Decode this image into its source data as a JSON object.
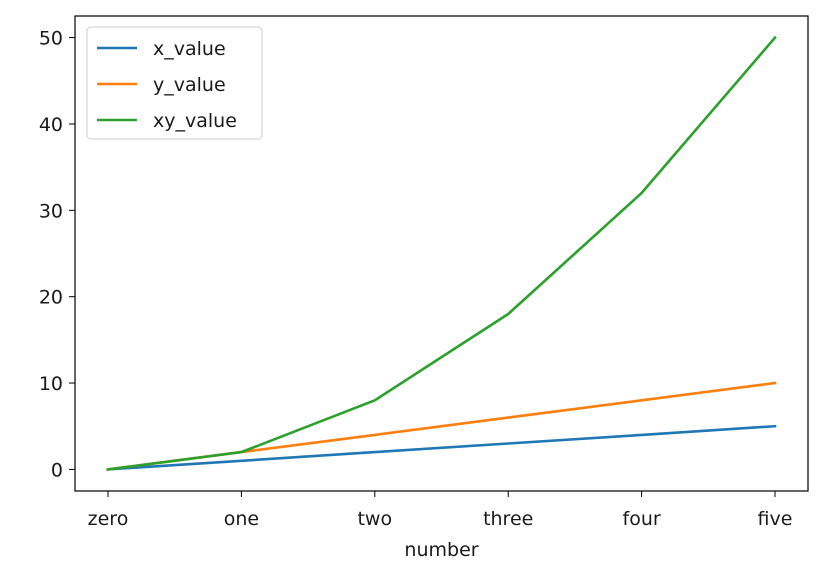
{
  "chart_data": {
    "type": "line",
    "title": "",
    "xlabel": "number",
    "ylabel": "",
    "categories": [
      "zero",
      "one",
      "two",
      "three",
      "four",
      "five"
    ],
    "yticks": [
      0,
      10,
      20,
      30,
      40,
      50
    ],
    "ylim": [
      -2.5,
      52.5
    ],
    "grid": false,
    "legend_position": "top-left",
    "series": [
      {
        "name": "x_value",
        "color": "#1f77b4",
        "values": [
          0,
          1,
          2,
          3,
          4,
          5
        ]
      },
      {
        "name": "y_value",
        "color": "#ff7f0e",
        "values": [
          0,
          2,
          4,
          6,
          8,
          10
        ]
      },
      {
        "name": "xy_value",
        "color": "#2ca02c",
        "values": [
          0,
          2,
          8,
          18,
          32,
          50
        ]
      }
    ]
  }
}
